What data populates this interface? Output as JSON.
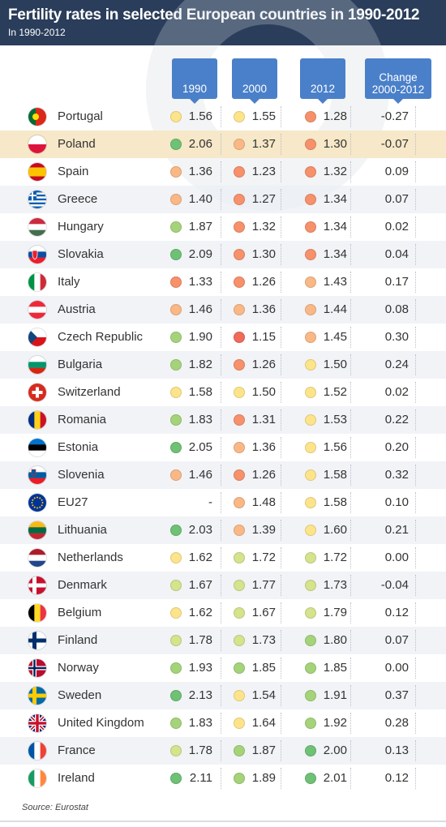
{
  "header": {
    "title": "Fertility rates in selected European countries in 1990-2012",
    "subtitle": "In 1990-2012"
  },
  "columns": {
    "c1990": "1990",
    "c2000": "2000",
    "c2012": "2012",
    "change": "Change\n2000-2012"
  },
  "source": "Source: Eurostat",
  "colors": {
    "header_bg": "#2a3d5a",
    "column_header": "#4a80c9",
    "highlight_row": "#f6e8c8",
    "scale": [
      "#f06b5a",
      "#f7916b",
      "#f9b886",
      "#fde48a",
      "#d4e38c",
      "#a5d37a",
      "#6ec175"
    ]
  },
  "chart_data": {
    "type": "table",
    "title": "Fertility rates in selected European countries in 1990-2012",
    "subtitle": "In 1990-2012",
    "columns": [
      "1990",
      "2000",
      "2012",
      "Change 2000-2012"
    ],
    "highlighted_row": "Poland",
    "rows": [
      {
        "country": "Portugal",
        "flag": "portugal-flag-icon",
        "v1990": "1.56",
        "v2000": "1.55",
        "v2012": "1.28",
        "change": "-0.27"
      },
      {
        "country": "Poland",
        "flag": "poland-flag-icon",
        "v1990": "2.06",
        "v2000": "1.37",
        "v2012": "1.30",
        "change": "-0.07"
      },
      {
        "country": "Spain",
        "flag": "spain-flag-icon",
        "v1990": "1.36",
        "v2000": "1.23",
        "v2012": "1.32",
        "change": "0.09"
      },
      {
        "country": "Greece",
        "flag": "greece-flag-icon",
        "v1990": "1.40",
        "v2000": "1.27",
        "v2012": "1.34",
        "change": "0.07"
      },
      {
        "country": "Hungary",
        "flag": "hungary-flag-icon",
        "v1990": "1.87",
        "v2000": "1.32",
        "v2012": "1.34",
        "change": "0.02"
      },
      {
        "country": "Slovakia",
        "flag": "slovakia-flag-icon",
        "v1990": "2.09",
        "v2000": "1.30",
        "v2012": "1.34",
        "change": "0.04"
      },
      {
        "country": "Italy",
        "flag": "italy-flag-icon",
        "v1990": "1.33",
        "v2000": "1.26",
        "v2012": "1.43",
        "change": "0.17"
      },
      {
        "country": "Austria",
        "flag": "austria-flag-icon",
        "v1990": "1.46",
        "v2000": "1.36",
        "v2012": "1.44",
        "change": "0.08"
      },
      {
        "country": "Czech Republic",
        "flag": "czech-republic-flag-icon",
        "v1990": "1.90",
        "v2000": "1.15",
        "v2012": "1.45",
        "change": "0.30"
      },
      {
        "country": "Bulgaria",
        "flag": "bulgaria-flag-icon",
        "v1990": "1.82",
        "v2000": "1.26",
        "v2012": "1.50",
        "change": "0.24"
      },
      {
        "country": "Switzerland",
        "flag": "switzerland-flag-icon",
        "v1990": "1.58",
        "v2000": "1.50",
        "v2012": "1.52",
        "change": "0.02"
      },
      {
        "country": "Romania",
        "flag": "romania-flag-icon",
        "v1990": "1.83",
        "v2000": "1.31",
        "v2012": "1.53",
        "change": "0.22"
      },
      {
        "country": "Estonia",
        "flag": "estonia-flag-icon",
        "v1990": "2.05",
        "v2000": "1.36",
        "v2012": "1.56",
        "change": "0.20"
      },
      {
        "country": "Slovenia",
        "flag": "slovenia-flag-icon",
        "v1990": "1.46",
        "v2000": "1.26",
        "v2012": "1.58",
        "change": "0.32"
      },
      {
        "country": "EU27",
        "flag": "eu-flag-icon",
        "v1990": "-",
        "v2000": "1.48",
        "v2012": "1.58",
        "change": "0.10"
      },
      {
        "country": "Lithuania",
        "flag": "lithuania-flag-icon",
        "v1990": "2.03",
        "v2000": "1.39",
        "v2012": "1.60",
        "change": "0.21"
      },
      {
        "country": "Netherlands",
        "flag": "netherlands-flag-icon",
        "v1990": "1.62",
        "v2000": "1.72",
        "v2012": "1.72",
        "change": "0.00"
      },
      {
        "country": "Denmark",
        "flag": "denmark-flag-icon",
        "v1990": "1.67",
        "v2000": "1.77",
        "v2012": "1.73",
        "change": "-0.04"
      },
      {
        "country": "Belgium",
        "flag": "belgium-flag-icon",
        "v1990": "1.62",
        "v2000": "1.67",
        "v2012": "1.79",
        "change": "0.12"
      },
      {
        "country": "Finland",
        "flag": "finland-flag-icon",
        "v1990": "1.78",
        "v2000": "1.73",
        "v2012": "1.80",
        "change": "0.07"
      },
      {
        "country": "Norway",
        "flag": "norway-flag-icon",
        "v1990": "1.93",
        "v2000": "1.85",
        "v2012": "1.85",
        "change": "0.00"
      },
      {
        "country": "Sweden",
        "flag": "sweden-flag-icon",
        "v1990": "2.13",
        "v2000": "1.54",
        "v2012": "1.91",
        "change": "0.37"
      },
      {
        "country": "United Kingdom",
        "flag": "united-kingdom-flag-icon",
        "v1990": "1.83",
        "v2000": "1.64",
        "v2012": "1.92",
        "change": "0.28"
      },
      {
        "country": "France",
        "flag": "france-flag-icon",
        "v1990": "1.78",
        "v2000": "1.87",
        "v2012": "2.00",
        "change": "0.13"
      },
      {
        "country": "Ireland",
        "flag": "ireland-flag-icon",
        "v1990": "2.11",
        "v2000": "1.89",
        "v2012": "2.01",
        "change": "0.12"
      }
    ]
  }
}
